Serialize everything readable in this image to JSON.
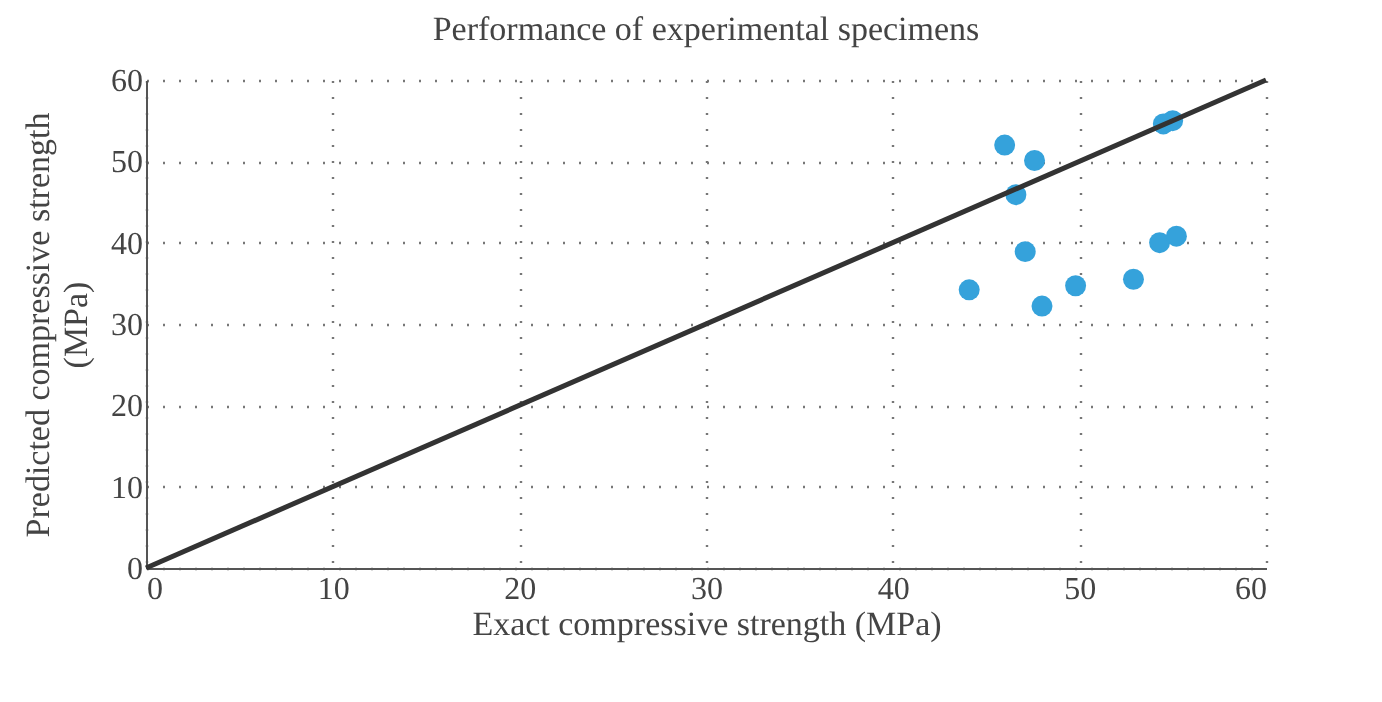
{
  "chart_data": {
    "type": "scatter",
    "title": "Performance of experimental specimens",
    "xlabel": "Exact compressive strength (MPa)",
    "ylabel": "Predicted compressive strength (MPa)",
    "xlim": [
      0,
      60
    ],
    "xticks": [
      0,
      10,
      20,
      30,
      40,
      50,
      60
    ],
    "ylim": [
      0,
      60
    ],
    "yticks": [
      0,
      10,
      20,
      30,
      40,
      50,
      60
    ],
    "grid": true,
    "series": [
      {
        "marker": "circle",
        "color": "#35a2db",
        "x": [
          46.0,
          47.6,
          46.6,
          47.1,
          44.1,
          48.0,
          49.8,
          52.9,
          54.3,
          55.2,
          54.5,
          55.0
        ],
        "values": [
          52.0,
          50.1,
          45.9,
          38.9,
          34.2,
          32.2,
          34.7,
          35.5,
          40.0,
          40.8,
          54.6,
          55.0
        ]
      },
      {
        "type": "line",
        "color": "#333333",
        "x": [
          0,
          60
        ],
        "values": [
          0,
          60
        ]
      }
    ]
  }
}
